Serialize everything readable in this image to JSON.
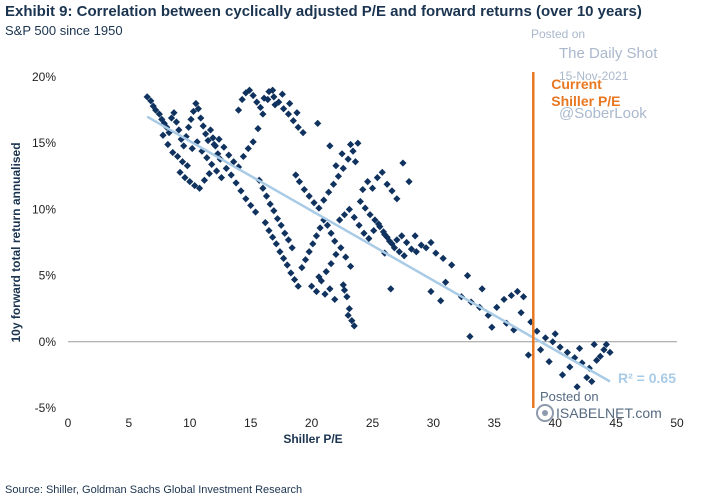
{
  "header": {
    "title": "Exhibit 9: Correlation between cyclically adjusted P/E and forward returns (over 10 years)",
    "subtitle": "S&P 500 since 1950"
  },
  "footer": {
    "source": "Source: Shiller, Goldman Sachs Global Investment Research"
  },
  "watermarks": {
    "posted_on_top": "Posted on",
    "daily_shot": "The Daily Shot",
    "date": "15-Nov-2021",
    "handle": "@SoberLook",
    "posted_on_bottom": "Posted on",
    "isabelnet": "ISABELNET.com"
  },
  "colors": {
    "points": "#10325e",
    "trend": "#a9cbe6",
    "current_line": "#e87722",
    "r2": "#a9cbe6"
  },
  "chart_data": {
    "type": "scatter",
    "xlabel": "Shiller P/E",
    "ylabel": "10y forward total return annualised",
    "xlim": [
      0,
      50
    ],
    "ylim": [
      -5,
      20
    ],
    "xticks": [
      "0",
      "5",
      "10",
      "15",
      "20",
      "25",
      "30",
      "35",
      "40",
      "45",
      "50"
    ],
    "yticks": [
      "-5%",
      "0%",
      "5%",
      "10%",
      "15%",
      "20%"
    ],
    "trendline": {
      "x": [
        6.5,
        44.5
      ],
      "y": [
        17.0,
        -3.0
      ]
    },
    "r_squared_label": "R² = 0.65",
    "current_marker": {
      "x": 38.2,
      "label_line1": "Current",
      "label_line2": "Shiller P/E"
    },
    "points": [
      [
        6.5,
        18.5
      ],
      [
        6.8,
        18.2
      ],
      [
        7.0,
        17.8
      ],
      [
        7.2,
        17.5
      ],
      [
        7.5,
        17.2
      ],
      [
        7.7,
        16.8
      ],
      [
        7.9,
        16.5
      ],
      [
        8.1,
        16.2
      ],
      [
        8.3,
        15.8
      ],
      [
        8.5,
        16.9
      ],
      [
        8.7,
        17.3
      ],
      [
        8.9,
        16.6
      ],
      [
        9.1,
        16.0
      ],
      [
        9.3,
        15.3
      ],
      [
        9.5,
        14.8
      ],
      [
        9.7,
        15.5
      ],
      [
        9.9,
        16.2
      ],
      [
        10.1,
        16.8
      ],
      [
        10.3,
        17.4
      ],
      [
        10.5,
        18.0
      ],
      [
        10.7,
        17.6
      ],
      [
        10.9,
        16.9
      ],
      [
        11.1,
        16.3
      ],
      [
        11.3,
        15.7
      ],
      [
        11.5,
        15.2
      ],
      [
        11.7,
        16.0
      ],
      [
        11.9,
        15.4
      ],
      [
        12.1,
        14.8
      ],
      [
        12.3,
        14.2
      ],
      [
        12.5,
        13.8
      ],
      [
        7.8,
        15.6
      ],
      [
        8.2,
        14.9
      ],
      [
        8.6,
        14.3
      ],
      [
        9.0,
        14.0
      ],
      [
        9.4,
        13.6
      ],
      [
        9.8,
        13.3
      ],
      [
        10.2,
        14.6
      ],
      [
        10.6,
        15.1
      ],
      [
        11.0,
        14.4
      ],
      [
        11.4,
        13.9
      ],
      [
        11.8,
        13.4
      ],
      [
        12.2,
        12.9
      ],
      [
        12.6,
        12.4
      ],
      [
        13.0,
        13.1
      ],
      [
        13.4,
        12.6
      ],
      [
        13.8,
        12.0
      ],
      [
        14.2,
        11.4
      ],
      [
        14.6,
        10.8
      ],
      [
        15.0,
        10.3
      ],
      [
        15.4,
        9.8
      ],
      [
        9.2,
        12.8
      ],
      [
        9.6,
        12.4
      ],
      [
        10.0,
        12.1
      ],
      [
        10.4,
        11.8
      ],
      [
        10.8,
        11.6
      ],
      [
        11.2,
        12.2
      ],
      [
        11.6,
        12.7
      ],
      [
        12.0,
        14.9
      ],
      [
        12.4,
        15.3
      ],
      [
        12.8,
        14.7
      ],
      [
        13.2,
        14.1
      ],
      [
        13.6,
        13.6
      ],
      [
        14.0,
        13.2
      ],
      [
        14.4,
        14.0
      ],
      [
        14.8,
        14.6
      ],
      [
        15.2,
        15.1
      ],
      [
        15.6,
        16.1
      ],
      [
        16.0,
        17.2
      ],
      [
        16.4,
        18.3
      ],
      [
        16.8,
        19.0
      ],
      [
        14.0,
        17.5
      ],
      [
        14.3,
        18.3
      ],
      [
        14.6,
        18.8
      ],
      [
        14.9,
        19.0
      ],
      [
        15.2,
        18.6
      ],
      [
        15.5,
        18.1
      ],
      [
        15.8,
        17.7
      ],
      [
        16.1,
        18.4
      ],
      [
        16.5,
        18.9
      ],
      [
        16.9,
        18.5
      ],
      [
        17.3,
        18.1
      ],
      [
        17.7,
        17.6
      ],
      [
        18.1,
        17.2
      ],
      [
        18.5,
        16.7
      ],
      [
        18.9,
        16.2
      ],
      [
        19.3,
        15.8
      ],
      [
        17.0,
        17.9
      ],
      [
        17.6,
        18.7
      ],
      [
        18.2,
        18.0
      ],
      [
        18.8,
        17.3
      ],
      [
        15.7,
        12.2
      ],
      [
        16.0,
        11.6
      ],
      [
        16.3,
        11.0
      ],
      [
        16.6,
        10.4
      ],
      [
        16.9,
        9.9
      ],
      [
        17.2,
        9.3
      ],
      [
        17.5,
        8.8
      ],
      [
        17.8,
        8.2
      ],
      [
        18.1,
        7.7
      ],
      [
        18.4,
        7.1
      ],
      [
        16.2,
        9.0
      ],
      [
        16.5,
        8.4
      ],
      [
        16.8,
        7.9
      ],
      [
        17.1,
        7.4
      ],
      [
        17.4,
        6.8
      ],
      [
        17.7,
        6.3
      ],
      [
        18.0,
        5.8
      ],
      [
        18.3,
        5.2
      ],
      [
        18.6,
        4.7
      ],
      [
        18.9,
        4.2
      ],
      [
        19.2,
        5.6
      ],
      [
        19.5,
        6.2
      ],
      [
        19.8,
        6.8
      ],
      [
        20.1,
        7.4
      ],
      [
        20.4,
        8.0
      ],
      [
        20.7,
        8.6
      ],
      [
        21.0,
        9.2
      ],
      [
        21.3,
        8.8
      ],
      [
        21.6,
        8.2
      ],
      [
        21.9,
        7.6
      ],
      [
        18.7,
        12.6
      ],
      [
        19.0,
        12.1
      ],
      [
        19.4,
        11.5
      ],
      [
        19.8,
        11.0
      ],
      [
        20.2,
        10.5
      ],
      [
        20.6,
        10.1
      ],
      [
        21.0,
        10.7
      ],
      [
        21.4,
        11.3
      ],
      [
        21.8,
        11.9
      ],
      [
        22.2,
        12.5
      ],
      [
        22.6,
        13.1
      ],
      [
        23.0,
        13.8
      ],
      [
        23.4,
        14.4
      ],
      [
        23.8,
        15.0
      ],
      [
        20.5,
        16.5
      ],
      [
        21.5,
        14.8
      ],
      [
        22.5,
        14.2
      ],
      [
        23.2,
        14.9
      ],
      [
        23.6,
        13.6
      ],
      [
        22.0,
        13.3
      ],
      [
        20.0,
        4.2
      ],
      [
        20.4,
        3.8
      ],
      [
        20.8,
        4.6
      ],
      [
        21.2,
        5.3
      ],
      [
        21.6,
        5.9
      ],
      [
        22.0,
        6.6
      ],
      [
        22.4,
        7.1
      ],
      [
        22.8,
        6.4
      ],
      [
        23.2,
        5.7
      ],
      [
        22.6,
        4.3
      ],
      [
        22.9,
        3.4
      ],
      [
        23.1,
        2.5
      ],
      [
        23.3,
        1.6
      ],
      [
        23.5,
        1.2
      ],
      [
        23.0,
        2.0
      ],
      [
        22.7,
        3.9
      ],
      [
        21.9,
        3.2
      ],
      [
        21.5,
        4.0
      ],
      [
        21.1,
        3.6
      ],
      [
        20.6,
        4.9
      ],
      [
        22.3,
        9.2
      ],
      [
        22.7,
        9.6
      ],
      [
        23.1,
        10.0
      ],
      [
        23.5,
        9.4
      ],
      [
        23.9,
        8.8
      ],
      [
        24.3,
        8.2
      ],
      [
        24.7,
        7.8
      ],
      [
        25.1,
        8.4
      ],
      [
        25.5,
        8.9
      ],
      [
        25.9,
        8.3
      ],
      [
        24.0,
        10.6
      ],
      [
        24.4,
        10.1
      ],
      [
        24.8,
        9.6
      ],
      [
        25.2,
        9.2
      ],
      [
        25.6,
        8.7
      ],
      [
        26.0,
        8.1
      ],
      [
        26.4,
        7.6
      ],
      [
        26.8,
        7.1
      ],
      [
        27.2,
        6.8
      ],
      [
        27.6,
        6.5
      ],
      [
        26.2,
        7.9
      ],
      [
        26.6,
        7.4
      ],
      [
        27.0,
        7.7
      ],
      [
        27.4,
        8.0
      ],
      [
        27.8,
        7.5
      ],
      [
        28.2,
        7.0
      ],
      [
        28.6,
        6.8
      ],
      [
        29.0,
        7.3
      ],
      [
        29.4,
        7.1
      ],
      [
        26.0,
        6.7
      ],
      [
        24.2,
        11.5
      ],
      [
        24.6,
        12.1
      ],
      [
        25.0,
        11.6
      ],
      [
        25.4,
        12.4
      ],
      [
        25.8,
        12.8
      ],
      [
        26.2,
        11.9
      ],
      [
        26.6,
        11.4
      ],
      [
        27.0,
        10.8
      ],
      [
        27.5,
        13.5
      ],
      [
        28.0,
        12.1
      ],
      [
        28.5,
        8.0
      ],
      [
        29.8,
        7.5
      ],
      [
        30.2,
        6.7
      ],
      [
        30.8,
        6.3
      ],
      [
        31.5,
        5.8
      ],
      [
        32.3,
        3.4
      ],
      [
        33.1,
        3.0
      ],
      [
        33.8,
        2.6
      ],
      [
        34.5,
        2.0
      ],
      [
        35.2,
        2.6
      ],
      [
        35.8,
        3.2
      ],
      [
        36.4,
        3.5
      ],
      [
        36.9,
        3.8
      ],
      [
        37.4,
        3.4
      ],
      [
        34.0,
        4.0
      ],
      [
        32.8,
        5.0
      ],
      [
        31.0,
        4.5
      ],
      [
        29.8,
        3.8
      ],
      [
        30.6,
        3.1
      ],
      [
        36.0,
        1.4
      ],
      [
        36.6,
        0.9
      ],
      [
        37.2,
        2.2
      ],
      [
        38.0,
        1.5
      ],
      [
        38.5,
        0.8
      ],
      [
        39.2,
        0.3
      ],
      [
        39.8,
        0.0
      ],
      [
        40.4,
        -0.4
      ],
      [
        41.0,
        -0.8
      ],
      [
        41.6,
        -1.2
      ],
      [
        42.2,
        -1.6
      ],
      [
        42.8,
        -2.0
      ],
      [
        43.4,
        -1.4
      ],
      [
        44.0,
        -0.6
      ],
      [
        44.5,
        -0.8
      ],
      [
        43.2,
        -0.2
      ],
      [
        42.0,
        -0.5
      ],
      [
        41.2,
        -1.9
      ],
      [
        40.6,
        -2.5
      ],
      [
        41.8,
        -3.4
      ],
      [
        42.6,
        -2.7
      ],
      [
        43.7,
        -1.1
      ],
      [
        39.5,
        -1.5
      ],
      [
        38.8,
        -0.6
      ],
      [
        37.8,
        -1.0
      ],
      [
        40.0,
        0.6
      ],
      [
        44.2,
        -0.2
      ],
      [
        43.0,
        -3.0
      ],
      [
        33.0,
        0.4
      ],
      [
        34.8,
        1.1
      ],
      [
        26.5,
        4.0
      ]
    ]
  }
}
